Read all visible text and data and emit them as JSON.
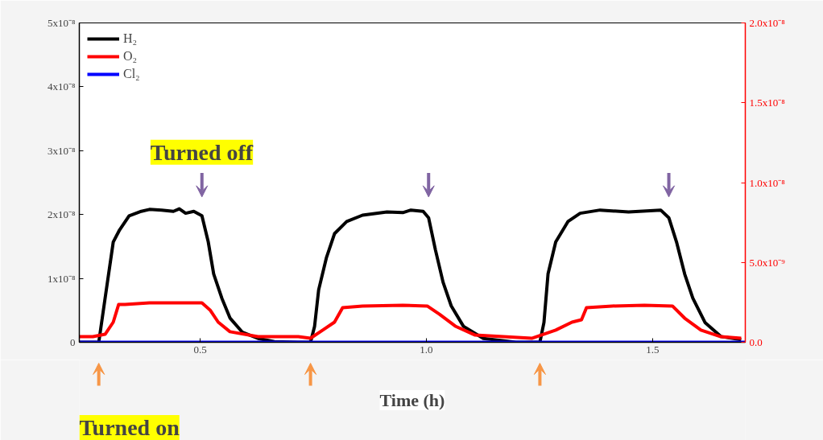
{
  "chart_data": {
    "type": "line",
    "xlabel": "Time (h)",
    "xlim": [
      0.233,
      1.705
    ],
    "ylim": [
      0,
      5e-08
    ],
    "y2lim": [
      0,
      2e-08
    ],
    "xticks": [
      {
        "value": 0.5,
        "label": "0.5"
      },
      {
        "value": 1.0,
        "label": "1.0"
      },
      {
        "value": 1.5,
        "label": "1.5"
      }
    ],
    "yticks": [
      0,
      {
        "value": 1e-08,
        "label": "1x10⁻⁸"
      },
      {
        "value": 2e-08,
        "label": "2x10⁻⁸"
      },
      {
        "value": 3e-08,
        "label": "3x10⁻⁸"
      },
      {
        "value": 4e-08,
        "label": "4x10⁻⁸"
      },
      {
        "value": 5e-08,
        "label": "5x10⁻⁸"
      }
    ],
    "y2ticks": [
      {
        "value": 0,
        "label": "0.0"
      },
      {
        "value": 5e-09,
        "label": "5.0x10⁻⁹"
      },
      {
        "value": 1e-08,
        "label": "1.0x10⁻⁸"
      },
      {
        "value": 1.5e-08,
        "label": "1.5x10⁻⁸"
      },
      {
        "value": 2e-08,
        "label": "2.0x10⁻⁸"
      }
    ],
    "grid": false,
    "legend": "top left",
    "marker": "none",
    "line_style": "solid",
    "series": [
      {
        "name": "H₂",
        "color": "#000000",
        "x": [
          0.233,
          0.263,
          0.276,
          0.29,
          0.308,
          0.322,
          0.343,
          0.37,
          0.388,
          0.415,
          0.441,
          0.454,
          0.468,
          0.486,
          0.504,
          0.518,
          0.53,
          0.548,
          0.566,
          0.593,
          0.628,
          0.664,
          0.717,
          0.744,
          0.753,
          0.762,
          0.779,
          0.797,
          0.824,
          0.859,
          0.913,
          0.948,
          0.966,
          0.993,
          1.005,
          1.02,
          1.037,
          1.055,
          1.082,
          1.126,
          1.198,
          1.251,
          1.26,
          1.269,
          1.286,
          1.313,
          1.34,
          1.384,
          1.447,
          1.518,
          1.536,
          1.553,
          1.571,
          1.589,
          1.616,
          1.651,
          1.696
        ],
        "values": [
          0,
          0,
          0,
          6.9e-09,
          1.57e-08,
          1.76e-08,
          1.98e-08,
          2.05e-08,
          2.08e-08,
          2.07e-08,
          2.05e-08,
          2.09e-08,
          2.02e-08,
          2.05e-08,
          1.98e-08,
          1.57e-08,
          1.07e-08,
          6.9e-09,
          3.8e-09,
          1.6e-09,
          6e-10,
          1e-10,
          0,
          0,
          2.5e-09,
          8.2e-09,
          1.32e-08,
          1.7e-08,
          1.89e-08,
          1.99e-08,
          2.04e-08,
          2.03e-08,
          2.07e-08,
          2.05e-08,
          1.95e-08,
          1.45e-08,
          9.4e-09,
          5.7e-09,
          2.5e-09,
          6e-10,
          0,
          0,
          3.1e-09,
          1.07e-08,
          1.57e-08,
          1.89e-08,
          2.02e-08,
          2.07e-08,
          2.04e-08,
          2.07e-08,
          1.95e-08,
          1.57e-08,
          1.07e-08,
          6.9e-09,
          3.1e-09,
          9e-10,
          4e-10
        ]
      },
      {
        "name": "O₂",
        "color": "#ff0000",
        "axis": "y2",
        "x": [
          0.233,
          0.263,
          0.29,
          0.308,
          0.32,
          0.334,
          0.388,
          0.504,
          0.522,
          0.54,
          0.566,
          0.628,
          0.717,
          0.744,
          0.771,
          0.797,
          0.815,
          0.859,
          0.948,
          1.002,
          1.029,
          1.064,
          1.108,
          1.233,
          1.286,
          1.322,
          1.343,
          1.354,
          1.411,
          1.482,
          1.544,
          1.571,
          1.607,
          1.651,
          1.696
        ],
        "values": [
          3.5e-10,
          3.5e-10,
          5e-10,
          1.26e-09,
          2.37e-09,
          2.37e-09,
          2.47e-09,
          2.47e-09,
          2.02e-09,
          1.26e-09,
          6.6e-10,
          3.5e-10,
          3.5e-10,
          2.5e-10,
          7.6e-10,
          1.26e-09,
          2.17e-09,
          2.27e-09,
          2.32e-09,
          2.27e-09,
          1.76e-09,
          1.01e-09,
          4.5e-10,
          2.5e-10,
          7.6e-10,
          1.26e-09,
          1.41e-09,
          2.17e-09,
          2.27e-09,
          2.32e-09,
          2.27e-09,
          1.51e-09,
          7.6e-10,
          3.5e-10,
          2.5e-10
        ]
      },
      {
        "name": "Cl₂",
        "color": "#0000ff",
        "x": [
          0.233,
          1.705
        ],
        "values": [
          0,
          0
        ]
      }
    ],
    "annotations": [
      "Turned off",
      "Turned on"
    ]
  }
}
